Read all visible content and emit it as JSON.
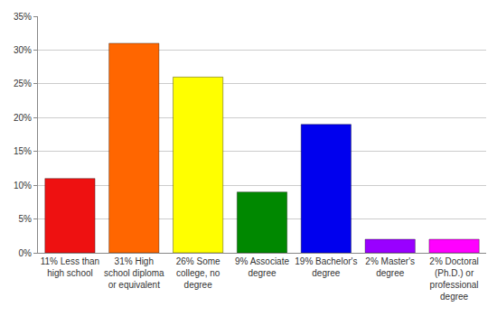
{
  "chart_data": {
    "type": "bar",
    "categories": [
      "11% Less than high school",
      "31% High school diploma or equivalent",
      "26% Some college, no degree",
      "9% Associate degree",
      "19% Bachelor's degree",
      "2% Master's degree",
      "2% Doctoral (Ph.D.) or professional degree"
    ],
    "values": [
      11,
      31,
      26,
      9,
      19,
      2,
      2
    ],
    "colors": [
      "#ee1111",
      "#ff6600",
      "#ffff00",
      "#008800",
      "#0000ee",
      "#9900ff",
      "#ff00ff"
    ],
    "ylim": [
      0,
      35
    ],
    "yticks": [
      {
        "value": 0,
        "label": "0%"
      },
      {
        "value": 5,
        "label": "5%"
      },
      {
        "value": 10,
        "label": "10%"
      },
      {
        "value": 15,
        "label": "15%"
      },
      {
        "value": 20,
        "label": "20%"
      },
      {
        "value": 25,
        "label": "25%"
      },
      {
        "value": 30,
        "label": "30%"
      },
      {
        "value": 35,
        "label": "35%"
      }
    ],
    "grid": true
  }
}
